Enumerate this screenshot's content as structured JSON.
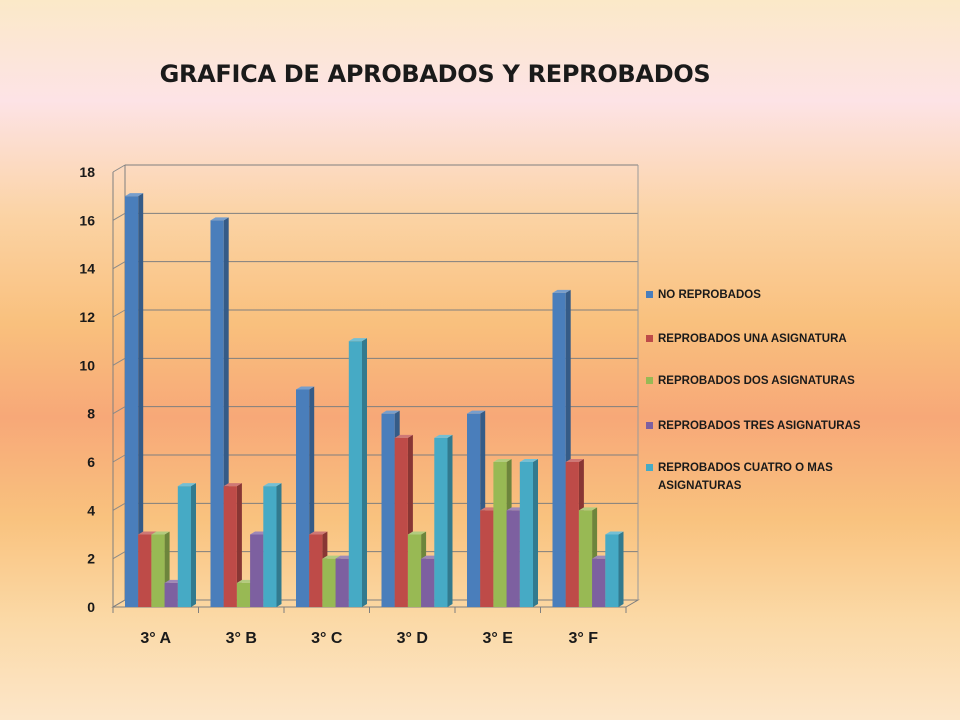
{
  "chart_data": {
    "type": "bar",
    "title": "GRAFICA DE APROBADOS Y REPROBADOS",
    "categories": [
      "3° A",
      "3° B",
      "3° C",
      "3° D",
      "3° E",
      "3° F"
    ],
    "ylim": [
      0,
      18
    ],
    "yticks": [
      0,
      2,
      4,
      6,
      8,
      10,
      12,
      14,
      16,
      18
    ],
    "grid": true,
    "legend_position": "right",
    "series": [
      {
        "name": "NO REPROBADOS",
        "color": "#4a7ebb",
        "values": [
          17,
          16,
          9,
          8,
          8,
          13
        ]
      },
      {
        "name": "REPROBADOS UNA ASIGNATURA",
        "color": "#be4b48",
        "values": [
          3,
          5,
          3,
          7,
          4,
          6
        ]
      },
      {
        "name": "REPROBADOS DOS ASIGNATURAS",
        "color": "#98b954",
        "values": [
          3,
          1,
          2,
          3,
          6,
          4
        ]
      },
      {
        "name": "REPROBADOS TRES ASIGNATURAS",
        "color": "#7d60a0",
        "values": [
          1,
          3,
          2,
          2,
          4,
          2
        ]
      },
      {
        "name": "REPROBADOS CUATRO O MAS ASIGNATURAS",
        "color": "#46aac5",
        "values": [
          5,
          5,
          11,
          7,
          6,
          3
        ]
      }
    ]
  }
}
